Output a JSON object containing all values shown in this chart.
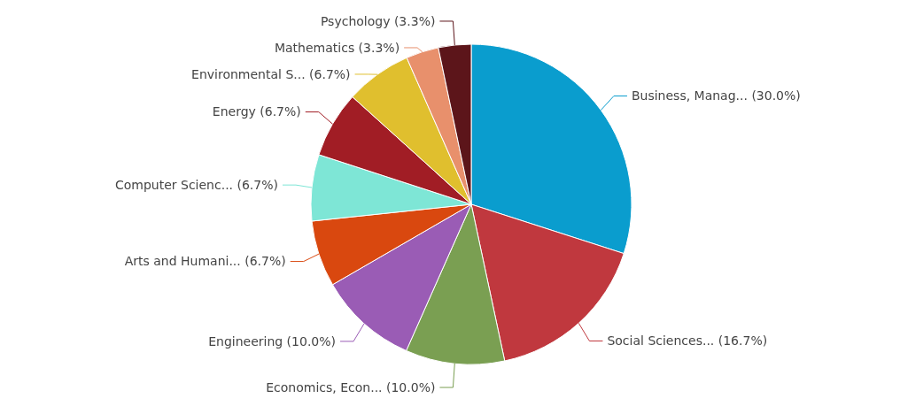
{
  "chart_data": {
    "type": "pie",
    "categories": [
      "Business, Manag... (30.0%)",
      "Social Sciences... (16.7%)",
      "Economics, Econ... (10.0%)",
      "Engineering (10.0%)",
      "Arts and Humani... (6.7%)",
      "Computer Scienc... (6.7%)",
      "Energy (6.7%)",
      "Environmental S... (6.7%)",
      "Mathematics (3.3%)",
      "Psychology (3.3%)"
    ],
    "values": [
      30.0,
      16.7,
      10.0,
      10.0,
      6.7,
      6.7,
      6.7,
      6.7,
      3.3,
      3.3
    ],
    "colors": [
      "#0a9dce",
      "#c0383e",
      "#7a9f52",
      "#9a5cb5",
      "#d9480f",
      "#7ee6d6",
      "#a11d25",
      "#e0bf2e",
      "#e8906c",
      "#5c151a"
    ]
  }
}
